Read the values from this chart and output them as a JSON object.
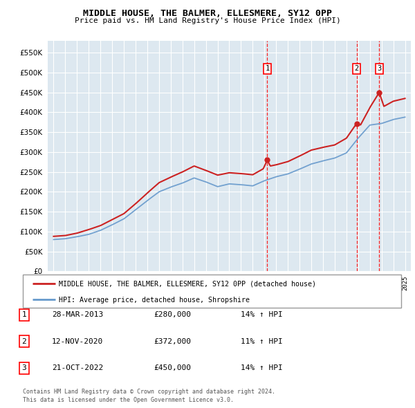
{
  "title": "MIDDLE HOUSE, THE BALMER, ELLESMERE, SY12 0PP",
  "subtitle": "Price paid vs. HM Land Registry's House Price Index (HPI)",
  "legend_line1": "MIDDLE HOUSE, THE BALMER, ELLESMERE, SY12 0PP (detached house)",
  "legend_line2": "HPI: Average price, detached house, Shropshire",
  "footer1": "Contains HM Land Registry data © Crown copyright and database right 2024.",
  "footer2": "This data is licensed under the Open Government Licence v3.0.",
  "transactions": [
    {
      "num": 1,
      "date": "28-MAR-2013",
      "price": "£280,000",
      "change": "14% ↑ HPI",
      "year": 2013.24,
      "price_val": 280000
    },
    {
      "num": 2,
      "date": "12-NOV-2020",
      "price": "£372,000",
      "change": "11% ↑ HPI",
      "year": 2020.87,
      "price_val": 372000
    },
    {
      "num": 3,
      "date": "21-OCT-2022",
      "price": "£450,000",
      "change": "14% ↑ HPI",
      "year": 2022.8,
      "price_val": 450000
    }
  ],
  "hpi_color": "#6699cc",
  "price_color": "#cc2222",
  "background_chart": "#dde8f0",
  "grid_color": "#ffffff",
  "ylim": [
    0,
    580000
  ],
  "yticks": [
    0,
    50000,
    100000,
    150000,
    200000,
    250000,
    300000,
    350000,
    400000,
    450000,
    500000,
    550000
  ],
  "xlim_start": 1994.5,
  "xlim_end": 2025.5
}
